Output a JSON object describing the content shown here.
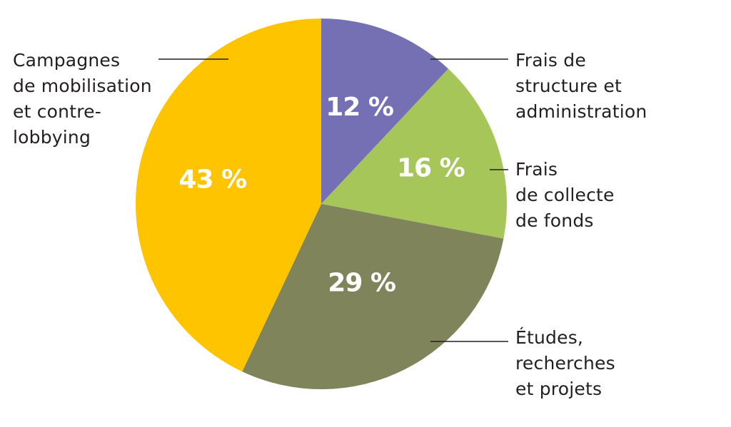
{
  "chart_data": {
    "type": "pie",
    "start_angle_deg": 0,
    "direction": "clockwise",
    "slices": [
      {
        "label": "Frais de\nstructure et\nadministration",
        "value": 12,
        "value_label": "12 %",
        "color": "#7570b3"
      },
      {
        "label": "Frais\nde collecte\nde fonds",
        "value": 16,
        "value_label": "16 %",
        "color": "#a6c65a"
      },
      {
        "label": "Études,\nrecherches\net projets",
        "value": 29,
        "value_label": "29 %",
        "color": "#7f845a"
      },
      {
        "label": "Campagnes\nde mobilisation\net contre-\nlobbying",
        "value": 43,
        "value_label": "43 %",
        "color": "#ffc400"
      }
    ]
  }
}
